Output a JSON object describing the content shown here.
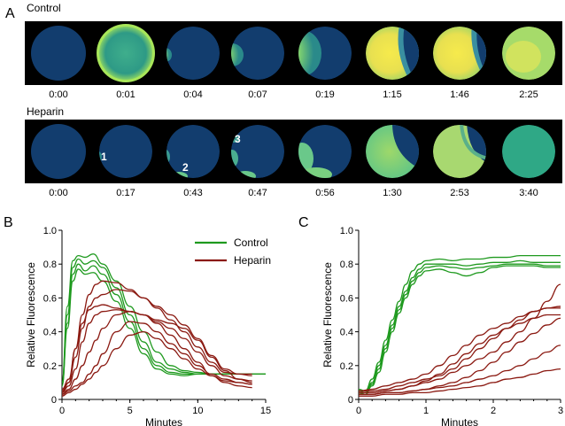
{
  "figure": {
    "panel_labels": {
      "a": "A",
      "b": "B",
      "c": "C"
    },
    "colors": {
      "control": "#1f9a1f",
      "heparin": "#8b1a12",
      "strip_background": "#000000",
      "dish_base": "#123d6e",
      "fluor_mid": "#5cc488",
      "fluor_high": "#f4e84a"
    },
    "panel_a": {
      "rows": [
        {
          "label": "Control",
          "arrow_icon": "arrow-icon",
          "times": [
            "0:00",
            "0:01",
            "0:04",
            "0:07",
            "0:19",
            "1:15",
            "1:46",
            "2:25"
          ]
        },
        {
          "label": "Heparin",
          "times": [
            "0:00",
            "0:17",
            "0:43",
            "0:47",
            "0:56",
            "1:30",
            "2:53",
            "3:40"
          ],
          "markers": [
            "1",
            "2",
            "3"
          ]
        }
      ]
    }
  },
  "chart_data": [
    {
      "panel": "B",
      "type": "line",
      "xlabel": "Minutes",
      "ylabel": "Relative Fluorescence",
      "xlim": [
        0,
        15
      ],
      "ylim": [
        0,
        1.0
      ],
      "xticks": [
        "0",
        "5",
        "10",
        "15"
      ],
      "yticks": [
        "0",
        "0.2",
        "0.4",
        "0.6",
        "0.8",
        "1.0"
      ],
      "legend": {
        "position": "top-right",
        "entries": [
          "Control",
          "Heparin"
        ]
      },
      "series": [
        {
          "name": "Control",
          "group": "control",
          "x": [
            0,
            0.4,
            0.8,
            1.2,
            1.7,
            2.3,
            3,
            4,
            5,
            6,
            7,
            8,
            9,
            10,
            11,
            12,
            13,
            14,
            15
          ],
          "y": [
            0.1,
            0.55,
            0.82,
            0.85,
            0.84,
            0.86,
            0.8,
            0.7,
            0.55,
            0.4,
            0.28,
            0.2,
            0.17,
            0.16,
            0.15,
            0.15,
            0.15,
            0.15,
            0.15
          ]
        },
        {
          "group": "control",
          "x": [
            0,
            0.4,
            0.8,
            1.2,
            1.7,
            2.3,
            3,
            4,
            5,
            6,
            7,
            8,
            9,
            10,
            11,
            12,
            13,
            14,
            15
          ],
          "y": [
            0.1,
            0.5,
            0.78,
            0.83,
            0.8,
            0.82,
            0.78,
            0.66,
            0.5,
            0.34,
            0.22,
            0.18,
            0.16,
            0.15,
            0.15,
            0.15,
            0.15,
            0.15,
            0.15
          ]
        },
        {
          "group": "control",
          "x": [
            0,
            0.4,
            0.8,
            1.2,
            1.7,
            2.3,
            3,
            4,
            5,
            6,
            7,
            8,
            9,
            10,
            11,
            12,
            13,
            14,
            15
          ],
          "y": [
            0.08,
            0.45,
            0.74,
            0.8,
            0.76,
            0.79,
            0.74,
            0.62,
            0.46,
            0.3,
            0.2,
            0.16,
            0.15,
            0.15,
            0.15,
            0.15,
            0.15,
            0.15,
            0.15
          ]
        },
        {
          "group": "control",
          "x": [
            0,
            0.4,
            0.8,
            1.2,
            1.7,
            2.3,
            3,
            4,
            5,
            6,
            7,
            8,
            9,
            10,
            11,
            12,
            13,
            14,
            15
          ],
          "y": [
            0.08,
            0.42,
            0.7,
            0.77,
            0.74,
            0.75,
            0.7,
            0.58,
            0.42,
            0.27,
            0.18,
            0.15,
            0.14,
            0.15,
            0.15,
            0.15,
            0.15,
            0.15,
            0.15
          ]
        },
        {
          "name": "Heparin",
          "group": "heparin",
          "x": [
            0,
            0.5,
            1,
            1.5,
            2,
            2.5,
            3,
            4,
            5,
            6,
            7,
            8,
            9,
            10,
            11,
            12,
            13,
            14
          ],
          "y": [
            0.05,
            0.1,
            0.3,
            0.5,
            0.62,
            0.68,
            0.7,
            0.69,
            0.65,
            0.6,
            0.54,
            0.47,
            0.4,
            0.31,
            0.22,
            0.16,
            0.15,
            0.14
          ]
        },
        {
          "group": "heparin",
          "x": [
            0,
            0.5,
            1,
            1.5,
            2,
            2.5,
            3,
            4,
            5,
            6,
            7,
            8,
            9,
            10,
            11,
            12,
            13,
            14
          ],
          "y": [
            0.04,
            0.1,
            0.25,
            0.42,
            0.55,
            0.6,
            0.62,
            0.65,
            0.64,
            0.6,
            0.55,
            0.5,
            0.44,
            0.36,
            0.26,
            0.18,
            0.15,
            0.15
          ]
        },
        {
          "group": "heparin",
          "x": [
            0,
            0.5,
            1,
            1.5,
            2,
            2.5,
            3,
            4,
            5,
            6,
            7,
            8,
            9,
            10,
            11,
            12,
            13,
            14
          ],
          "y": [
            0.06,
            0.12,
            0.3,
            0.45,
            0.53,
            0.55,
            0.56,
            0.54,
            0.52,
            0.5,
            0.47,
            0.45,
            0.42,
            0.35,
            0.25,
            0.17,
            0.12,
            0.1
          ]
        },
        {
          "group": "heparin",
          "x": [
            0,
            0.5,
            1,
            1.5,
            2,
            2.5,
            3,
            4,
            5,
            6,
            7,
            8,
            9,
            10,
            11,
            12,
            13,
            14
          ],
          "y": [
            0.04,
            0.08,
            0.18,
            0.34,
            0.45,
            0.5,
            0.52,
            0.53,
            0.52,
            0.5,
            0.46,
            0.42,
            0.36,
            0.28,
            0.2,
            0.14,
            0.12,
            0.11
          ]
        },
        {
          "group": "heparin",
          "x": [
            0,
            0.5,
            1,
            1.5,
            2,
            2.5,
            3,
            4,
            5,
            6,
            7,
            8,
            9,
            10,
            11,
            12,
            13,
            14
          ],
          "y": [
            0.03,
            0.06,
            0.12,
            0.2,
            0.28,
            0.35,
            0.42,
            0.5,
            0.52,
            0.5,
            0.45,
            0.38,
            0.3,
            0.22,
            0.14,
            0.1,
            0.08,
            0.07
          ]
        },
        {
          "group": "heparin",
          "x": [
            0,
            0.5,
            1,
            1.5,
            2,
            2.5,
            3,
            4,
            5,
            6,
            7,
            8,
            9,
            10,
            11,
            12,
            13,
            14
          ],
          "y": [
            0.03,
            0.05,
            0.08,
            0.1,
            0.15,
            0.2,
            0.27,
            0.4,
            0.46,
            0.45,
            0.4,
            0.33,
            0.27,
            0.2,
            0.15,
            0.12,
            0.1,
            0.09
          ]
        },
        {
          "group": "heparin",
          "x": [
            0,
            0.5,
            1,
            1.5,
            2,
            2.5,
            3,
            4,
            5,
            6,
            7,
            8,
            9,
            10,
            11,
            12,
            13,
            14
          ],
          "y": [
            0.02,
            0.04,
            0.06,
            0.09,
            0.12,
            0.16,
            0.2,
            0.3,
            0.38,
            0.4,
            0.36,
            0.3,
            0.24,
            0.18,
            0.14,
            0.11,
            0.1,
            0.09
          ]
        }
      ]
    },
    {
      "panel": "C",
      "type": "line",
      "xlabel": "Minutes",
      "ylabel": "Relative Fluorescence",
      "xlim": [
        0,
        3
      ],
      "ylim": [
        0,
        1.0
      ],
      "xticks": [
        "0",
        "1",
        "2",
        "3"
      ],
      "yticks": [
        "0",
        "0.2",
        "0.4",
        "0.6",
        "0.8",
        "1.0"
      ],
      "series": [
        {
          "group": "control",
          "x": [
            0,
            0.1,
            0.2,
            0.3,
            0.4,
            0.5,
            0.6,
            0.7,
            0.8,
            0.9,
            1,
            1.2,
            1.4,
            1.6,
            1.8,
            2,
            2.2,
            2.4,
            2.6,
            2.8,
            3
          ],
          "y": [
            0.06,
            0.05,
            0.12,
            0.22,
            0.35,
            0.47,
            0.58,
            0.68,
            0.76,
            0.8,
            0.82,
            0.83,
            0.82,
            0.83,
            0.83,
            0.84,
            0.84,
            0.85,
            0.85,
            0.85,
            0.85
          ]
        },
        {
          "group": "control",
          "x": [
            0,
            0.1,
            0.2,
            0.3,
            0.4,
            0.5,
            0.6,
            0.7,
            0.8,
            0.9,
            1,
            1.2,
            1.4,
            1.6,
            1.8,
            2,
            2.2,
            2.4,
            2.6,
            2.8,
            3
          ],
          "y": [
            0.05,
            0.04,
            0.1,
            0.2,
            0.32,
            0.44,
            0.55,
            0.64,
            0.72,
            0.77,
            0.8,
            0.8,
            0.8,
            0.79,
            0.8,
            0.81,
            0.81,
            0.82,
            0.81,
            0.81,
            0.81
          ]
        },
        {
          "group": "control",
          "x": [
            0,
            0.1,
            0.2,
            0.3,
            0.4,
            0.5,
            0.6,
            0.7,
            0.8,
            0.9,
            1,
            1.2,
            1.4,
            1.6,
            1.8,
            2,
            2.2,
            2.4,
            2.6,
            2.8,
            3
          ],
          "y": [
            0.04,
            0.03,
            0.09,
            0.18,
            0.3,
            0.42,
            0.53,
            0.62,
            0.7,
            0.75,
            0.78,
            0.79,
            0.78,
            0.77,
            0.78,
            0.79,
            0.8,
            0.8,
            0.8,
            0.79,
            0.79
          ]
        },
        {
          "group": "control",
          "x": [
            0,
            0.1,
            0.2,
            0.3,
            0.4,
            0.5,
            0.6,
            0.7,
            0.8,
            0.9,
            1,
            1.2,
            1.4,
            1.6,
            1.8,
            2,
            2.2,
            2.4,
            2.6,
            2.8,
            3
          ],
          "y": [
            0.04,
            0.03,
            0.08,
            0.16,
            0.28,
            0.4,
            0.51,
            0.6,
            0.68,
            0.73,
            0.76,
            0.77,
            0.75,
            0.73,
            0.75,
            0.78,
            0.79,
            0.79,
            0.79,
            0.78,
            0.78
          ]
        },
        {
          "group": "heparin",
          "x": [
            0,
            0.2,
            0.4,
            0.6,
            0.8,
            1,
            1.2,
            1.4,
            1.6,
            1.8,
            2,
            2.2,
            2.4,
            2.6,
            2.8,
            3
          ],
          "y": [
            0.05,
            0.06,
            0.08,
            0.1,
            0.12,
            0.15,
            0.2,
            0.26,
            0.32,
            0.38,
            0.42,
            0.45,
            0.49,
            0.52,
            0.54,
            0.55
          ]
        },
        {
          "group": "heparin",
          "x": [
            0,
            0.2,
            0.4,
            0.6,
            0.8,
            1,
            1.2,
            1.4,
            1.6,
            1.8,
            2,
            2.2,
            2.4,
            2.6,
            2.8,
            3
          ],
          "y": [
            0.05,
            0.05,
            0.06,
            0.08,
            0.1,
            0.12,
            0.14,
            0.18,
            0.24,
            0.3,
            0.36,
            0.42,
            0.47,
            0.52,
            0.54,
            0.54
          ]
        },
        {
          "group": "heparin",
          "x": [
            0,
            0.2,
            0.4,
            0.6,
            0.8,
            1,
            1.2,
            1.4,
            1.6,
            1.8,
            2,
            2.2,
            2.4,
            2.6,
            2.8,
            3
          ],
          "y": [
            0.04,
            0.04,
            0.05,
            0.06,
            0.08,
            0.1,
            0.12,
            0.16,
            0.2,
            0.24,
            0.28,
            0.34,
            0.4,
            0.48,
            0.58,
            0.68
          ]
        },
        {
          "group": "heparin",
          "x": [
            0,
            0.2,
            0.4,
            0.6,
            0.8,
            1,
            1.2,
            1.4,
            1.6,
            1.8,
            2,
            2.2,
            2.4,
            2.6,
            2.8,
            3
          ],
          "y": [
            0.04,
            0.04,
            0.05,
            0.06,
            0.08,
            0.11,
            0.15,
            0.21,
            0.27,
            0.33,
            0.38,
            0.42,
            0.45,
            0.48,
            0.5,
            0.5
          ]
        },
        {
          "group": "heparin",
          "x": [
            0,
            0.2,
            0.4,
            0.6,
            0.8,
            1,
            1.2,
            1.4,
            1.6,
            1.8,
            2,
            2.2,
            2.4,
            2.6,
            2.8,
            3
          ],
          "y": [
            0.03,
            0.03,
            0.04,
            0.04,
            0.05,
            0.06,
            0.08,
            0.1,
            0.13,
            0.17,
            0.22,
            0.28,
            0.34,
            0.39,
            0.44,
            0.48
          ]
        },
        {
          "group": "heparin",
          "x": [
            0,
            0.2,
            0.4,
            0.6,
            0.8,
            1,
            1.2,
            1.4,
            1.6,
            1.8,
            2,
            2.2,
            2.4,
            2.6,
            2.8,
            3
          ],
          "y": [
            0.03,
            0.03,
            0.04,
            0.04,
            0.05,
            0.06,
            0.07,
            0.08,
            0.1,
            0.12,
            0.14,
            0.17,
            0.2,
            0.24,
            0.28,
            0.32
          ]
        },
        {
          "group": "heparin",
          "x": [
            0,
            0.2,
            0.4,
            0.6,
            0.8,
            1,
            1.2,
            1.4,
            1.6,
            1.8,
            2,
            2.2,
            2.4,
            2.6,
            2.8,
            3
          ],
          "y": [
            0.02,
            0.02,
            0.03,
            0.03,
            0.04,
            0.04,
            0.05,
            0.06,
            0.07,
            0.08,
            0.1,
            0.12,
            0.13,
            0.15,
            0.17,
            0.18
          ]
        }
      ]
    }
  ]
}
